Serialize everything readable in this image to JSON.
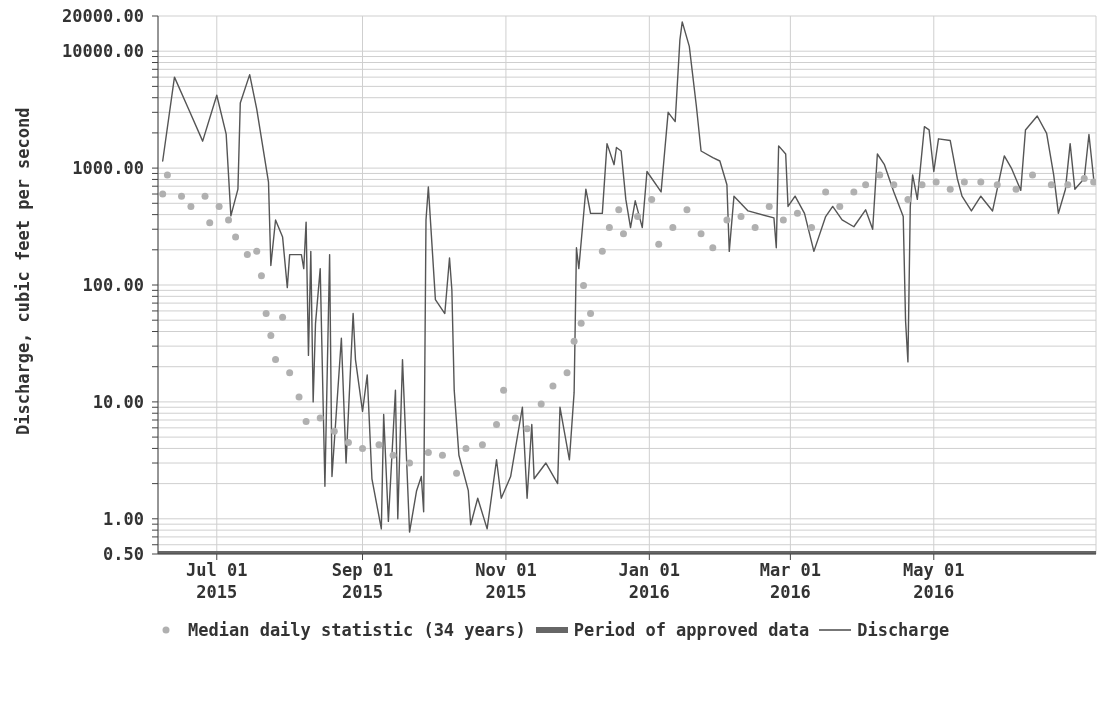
{
  "chart_data": {
    "type": "line",
    "ylabel": "Discharge, cubic feet per second",
    "log": "y",
    "grid": true,
    "legend": "bottom",
    "xlim": [
      "2015-06-06",
      "2016-07-09"
    ],
    "xticks": [
      {
        "value": "2015-07-01",
        "label": "Jul 01\n2015"
      },
      {
        "value": "2015-09-01",
        "label": "Sep 01\n2015"
      },
      {
        "value": "2015-11-01",
        "label": "Nov 01\n2015"
      },
      {
        "value": "2016-01-01",
        "label": "Jan 01\n2016"
      },
      {
        "value": "2016-03-01",
        "label": "Mar 01\n2016"
      },
      {
        "value": "2016-05-01",
        "label": "May 01\n2016"
      }
    ],
    "ylim": [
      0.5,
      20000
    ],
    "yticks": [
      {
        "value": 0.5,
        "label": "0.50"
      },
      {
        "value": 0.6,
        "label": null
      },
      {
        "value": 0.7,
        "label": null
      },
      {
        "value": 0.8,
        "label": null
      },
      {
        "value": 0.9,
        "label": null
      },
      {
        "value": 1,
        "label": "1.00"
      },
      {
        "value": 2,
        "label": null
      },
      {
        "value": 3,
        "label": null
      },
      {
        "value": 4,
        "label": null
      },
      {
        "value": 5,
        "label": null
      },
      {
        "value": 6,
        "label": null
      },
      {
        "value": 7,
        "label": null
      },
      {
        "value": 8,
        "label": null
      },
      {
        "value": 9,
        "label": null
      },
      {
        "value": 10,
        "label": "10.00"
      },
      {
        "value": 20,
        "label": null
      },
      {
        "value": 30,
        "label": null
      },
      {
        "value": 40,
        "label": null
      },
      {
        "value": 50,
        "label": null
      },
      {
        "value": 60,
        "label": null
      },
      {
        "value": 70,
        "label": null
      },
      {
        "value": 80,
        "label": null
      },
      {
        "value": 90,
        "label": null
      },
      {
        "value": 100,
        "label": "100.00"
      },
      {
        "value": 200,
        "label": null
      },
      {
        "value": 300,
        "label": null
      },
      {
        "value": 400,
        "label": null
      },
      {
        "value": 500,
        "label": null
      },
      {
        "value": 600,
        "label": null
      },
      {
        "value": 700,
        "label": null
      },
      {
        "value": 800,
        "label": null
      },
      {
        "value": 900,
        "label": null
      },
      {
        "value": 1000,
        "label": "1000.00"
      },
      {
        "value": 2000,
        "label": null
      },
      {
        "value": 3000,
        "label": null
      },
      {
        "value": 4000,
        "label": null
      },
      {
        "value": 5000,
        "label": null
      },
      {
        "value": 6000,
        "label": null
      },
      {
        "value": 7000,
        "label": null
      },
      {
        "value": 8000,
        "label": null
      },
      {
        "value": 9000,
        "label": null
      },
      {
        "value": 10000,
        "label": "10000.00"
      },
      {
        "value": 20000,
        "label": "20000.00"
      }
    ],
    "series": [
      {
        "name": "Median daily statistic (34 years)",
        "type": "scatter",
        "marker": "circle",
        "color": "#b0b0b0",
        "x": [
          "2015-06-08",
          "2015-06-10",
          "2015-06-16",
          "2015-06-20",
          "2015-06-26",
          "2015-06-28",
          "2015-07-02",
          "2015-07-06",
          "2015-07-09",
          "2015-07-14",
          "2015-07-18",
          "2015-07-20",
          "2015-07-22",
          "2015-07-24",
          "2015-07-26",
          "2015-07-29",
          "2015-08-01",
          "2015-08-05",
          "2015-08-08",
          "2015-08-14",
          "2015-08-20",
          "2015-08-26",
          "2015-09-01",
          "2015-09-08",
          "2015-09-14",
          "2015-09-21",
          "2015-09-29",
          "2015-10-05",
          "2015-10-11",
          "2015-10-15",
          "2015-10-22",
          "2015-10-28",
          "2015-10-31",
          "2015-11-05",
          "2015-11-10",
          "2015-11-16",
          "2015-11-21",
          "2015-11-27",
          "2015-11-30",
          "2015-12-03",
          "2015-12-04",
          "2015-12-07",
          "2015-12-12",
          "2015-12-15",
          "2015-12-19",
          "2015-12-21",
          "2015-12-27",
          "2016-01-02",
          "2016-01-05",
          "2016-01-11",
          "2016-01-17",
          "2016-01-23",
          "2016-01-28",
          "2016-02-03",
          "2016-02-09",
          "2016-02-15",
          "2016-02-21",
          "2016-02-27",
          "2016-03-04",
          "2016-03-10",
          "2016-03-16",
          "2016-03-22",
          "2016-03-28",
          "2016-04-02",
          "2016-04-08",
          "2016-04-14",
          "2016-04-20",
          "2016-04-26",
          "2016-05-02",
          "2016-05-08",
          "2016-05-14",
          "2016-05-21",
          "2016-05-28",
          "2016-06-05",
          "2016-06-12",
          "2016-06-20",
          "2016-06-27",
          "2016-07-04",
          "2016-07-08"
        ],
        "values": [
          600,
          875,
          575,
          470,
          575,
          340,
          470,
          360,
          257,
          182,
          194,
          120,
          57,
          37,
          23,
          53,
          17.8,
          11,
          6.8,
          7.3,
          5.6,
          4.5,
          4.0,
          4.3,
          3.5,
          3.0,
          3.7,
          3.5,
          2.45,
          4.0,
          4.3,
          6.4,
          12.6,
          7.3,
          5.9,
          9.6,
          13.7,
          17.8,
          33,
          47,
          99,
          57,
          194,
          310,
          440,
          275,
          385,
          540,
          223,
          310,
          440,
          275,
          208,
          360,
          385,
          310,
          470,
          360,
          410,
          310,
          625,
          470,
          625,
          720,
          875,
          720,
          540,
          720,
          760,
          660,
          760,
          760,
          720,
          660,
          875,
          720,
          720,
          815,
          760
        ]
      },
      {
        "name": "Period of approved data",
        "color": "#666666",
        "x": [
          "2015-06-06",
          "2016-07-09"
        ],
        "values": [
          0.5,
          0.5
        ]
      },
      {
        "name": "Discharge",
        "color": "#555555",
        "x": [
          "2015-06-08",
          "2015-06-13",
          "2015-06-19",
          "2015-06-25",
          "2015-07-01",
          "2015-07-05",
          "2015-07-07",
          "2015-07-10",
          "2015-07-11",
          "2015-07-15",
          "2015-07-18",
          "2015-07-23",
          "2015-07-24",
          "2015-07-26",
          "2015-07-29",
          "2015-07-31",
          "2015-08-01",
          "2015-08-06",
          "2015-08-07",
          "2015-08-08",
          "2015-08-09",
          "2015-08-10",
          "2015-08-11",
          "2015-08-12",
          "2015-08-14",
          "2015-08-16",
          "2015-08-18",
          "2015-08-19",
          "2015-08-23",
          "2015-08-25",
          "2015-08-28",
          "2015-08-29",
          "2015-09-01",
          "2015-09-03",
          "2015-09-05",
          "2015-09-09",
          "2015-09-10",
          "2015-09-12",
          "2015-09-15",
          "2015-09-16",
          "2015-09-18",
          "2015-09-21",
          "2015-09-24",
          "2015-09-26",
          "2015-09-27",
          "2015-09-28",
          "2015-09-29",
          "2015-10-02",
          "2015-10-06",
          "2015-10-08",
          "2015-10-09",
          "2015-10-10",
          "2015-10-12",
          "2015-10-16",
          "2015-10-17",
          "2015-10-20",
          "2015-10-24",
          "2015-10-28",
          "2015-10-30",
          "2015-11-03",
          "2015-11-08",
          "2015-11-10",
          "2015-11-12",
          "2015-11-13",
          "2015-11-18",
          "2015-11-23",
          "2015-11-24",
          "2015-11-28",
          "2015-11-30",
          "2015-12-01",
          "2015-12-02",
          "2015-12-05",
          "2015-12-07",
          "2015-12-12",
          "2015-12-14",
          "2015-12-17",
          "2015-12-18",
          "2015-12-20",
          "2015-12-22",
          "2015-12-24",
          "2015-12-26",
          "2015-12-29",
          "2015-12-31",
          "2016-01-06",
          "2016-01-09",
          "2016-01-12",
          "2016-01-14",
          "2016-01-15",
          "2016-01-18",
          "2016-01-21",
          "2016-01-23",
          "2016-01-28",
          "2016-01-31",
          "2016-02-03",
          "2016-02-04",
          "2016-02-06",
          "2016-02-12",
          "2016-02-23",
          "2016-02-24",
          "2016-02-25",
          "2016-02-28",
          "2016-02-29",
          "2016-03-03",
          "2016-03-07",
          "2016-03-11",
          "2016-03-16",
          "2016-03-19",
          "2016-03-23",
          "2016-03-28",
          "2016-04-02",
          "2016-04-05",
          "2016-04-07",
          "2016-04-10",
          "2016-04-14",
          "2016-04-18",
          "2016-04-19",
          "2016-04-20",
          "2016-04-21",
          "2016-04-22",
          "2016-04-24",
          "2016-04-27",
          "2016-04-29",
          "2016-05-01",
          "2016-05-03",
          "2016-05-08",
          "2016-05-11",
          "2016-05-13",
          "2016-05-17",
          "2016-05-21",
          "2016-05-26",
          "2016-05-31",
          "2016-06-03",
          "2016-06-07",
          "2016-06-09",
          "2016-06-14",
          "2016-06-18",
          "2016-06-21",
          "2016-06-23",
          "2016-06-26",
          "2016-06-28",
          "2016-06-30",
          "2016-07-04",
          "2016-07-06",
          "2016-07-08"
        ],
        "values": [
          1150,
          6000,
          3200,
          1700,
          4200,
          1950,
          390,
          660,
          3600,
          6300,
          3200,
          760,
          147,
          360,
          257,
          95,
          182,
          182,
          138,
          345,
          25,
          194,
          10,
          47,
          138,
          1.9,
          182,
          2.3,
          35,
          3.0,
          57,
          23,
          8.3,
          17,
          2.2,
          0.82,
          7.8,
          0.95,
          12.6,
          1.0,
          23,
          0.77,
          1.74,
          2.3,
          1.15,
          360,
          690,
          75,
          57,
          170,
          91,
          12.6,
          3.5,
          1.74,
          0.89,
          1.5,
          0.82,
          3.2,
          1.5,
          2.3,
          9.0,
          1.5,
          6.4,
          2.2,
          3.0,
          2.0,
          9.0,
          3.2,
          12,
          208,
          138,
          660,
          410,
          410,
          1620,
          1070,
          1500,
          1400,
          540,
          310,
          525,
          310,
          935,
          625,
          3000,
          2500,
          12500,
          17800,
          11000,
          3400,
          1400,
          1230,
          1150,
          720,
          194,
          575,
          430,
          375,
          208,
          1550,
          1320,
          470,
          575,
          410,
          194,
          385,
          470,
          360,
          315,
          440,
          300,
          1320,
          1070,
          625,
          385,
          49,
          22,
          470,
          875,
          540,
          2260,
          2120,
          935,
          1780,
          1720,
          815,
          575,
          430,
          575,
          430,
          1270,
          1000,
          645,
          2120,
          2790,
          1980,
          875,
          410,
          660,
          1620,
          660,
          815,
          1940,
          815
        ]
      }
    ]
  }
}
